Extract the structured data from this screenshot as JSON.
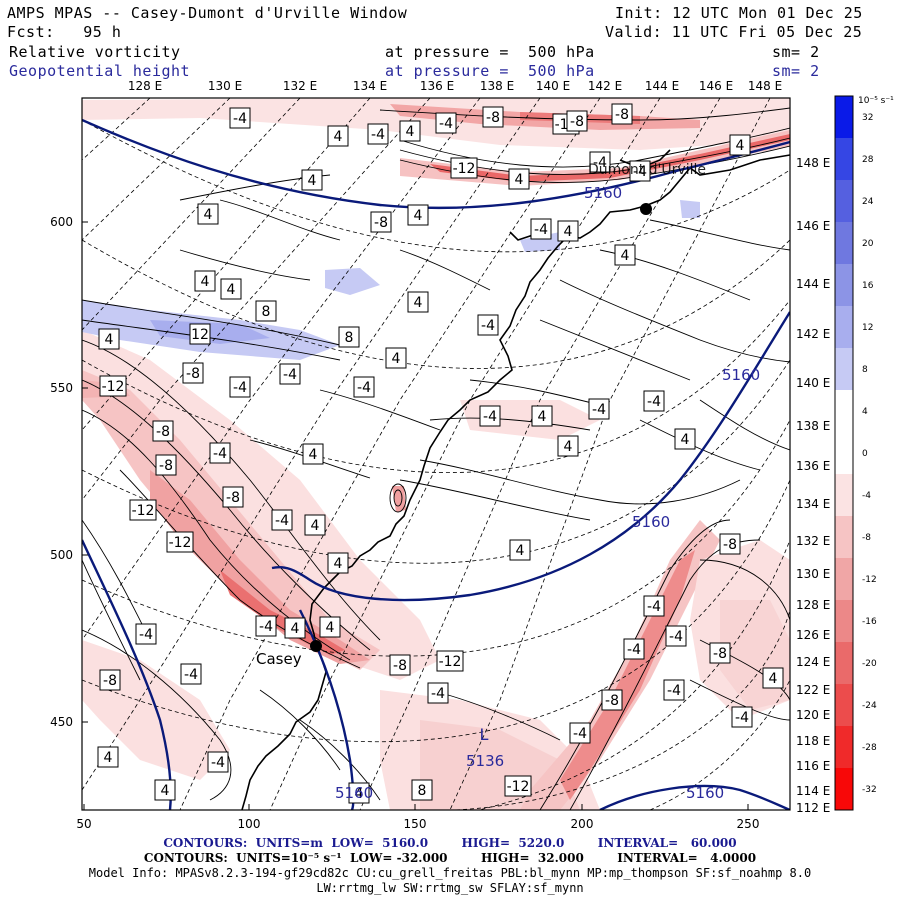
{
  "header": {
    "title": "AMPS MPAS -- Casey-Dumont d'Urville Window",
    "init": "Init: 12 UTC Mon 01 Dec 25",
    "fcst": "Fcst:   95 h",
    "valid": "Valid: 11 UTC Fri 05 Dec 25",
    "field1": "Relative vorticity",
    "field1_level": "at pressure =  500 hPa",
    "field1_sm": "sm= 2",
    "field2": "Geopotential height",
    "field2_level": "at pressure =  500 hPa",
    "field2_sm": "sm= 2"
  },
  "top_lon_labels": [
    "128 E",
    "130 E",
    "132 E",
    "134 E",
    "136 E",
    "138 E",
    "140 E",
    "142 E",
    "144 E",
    "146 E",
    "148 E"
  ],
  "right_lon_labels": [
    "148 E",
    "146 E",
    "144 E",
    "142 E",
    "140 E",
    "138 E",
    "136 E",
    "134 E",
    "132 E",
    "130 E",
    "128 E",
    "126 E",
    "124 E",
    "122 E",
    "120 E",
    "118 E",
    "116 E",
    "114 E",
    "112 E"
  ],
  "x_ticks": [
    "50",
    "100",
    "150",
    "200",
    "250"
  ],
  "y_ticks": [
    "600",
    "550",
    "500",
    "450"
  ],
  "colorbar": {
    "units": "10⁻⁵ s⁻¹",
    "labels": [
      "32",
      "28",
      "24",
      "20",
      "16",
      "12",
      "8",
      "4",
      "0",
      "-4",
      "-8",
      "-12",
      "-16",
      "-20",
      "-24",
      "-28",
      "-32"
    ],
    "colors": [
      "#0a1ae8",
      "#3546e4",
      "#5560e0",
      "#6f78e0",
      "#8c94e6",
      "#a8aeee",
      "#c6caf4",
      "#ffffff",
      "#ffffff",
      "#fbe3e3",
      "#f6c4c4",
      "#f0a6a6",
      "#ec8888",
      "#ea6a6a",
      "#ec4c4c",
      "#f02a2a",
      "#f80808"
    ]
  },
  "stations": [
    {
      "name": "Casey"
    },
    {
      "name": "Dumont d'Urville"
    }
  ],
  "height_labels": [
    "5160",
    "5160",
    "5160",
    "5160",
    "5160",
    "5136"
  ],
  "low_marker": "L",
  "vorticity_labels": [
    "-4",
    "4",
    "-4",
    "4",
    "-4",
    "-8",
    "-12",
    "-8",
    "-12",
    "4",
    "4",
    "4",
    "4",
    "-8",
    "4",
    "4",
    "8",
    "12",
    "8",
    "4",
    "4",
    "-4",
    "-4",
    "-4",
    "4",
    "-12",
    "-8",
    "-4",
    "-8",
    "-4",
    "-8",
    "-12",
    "-4",
    "4",
    "4",
    "-8",
    "-12",
    "4",
    "4",
    "-4",
    "4",
    "4",
    "-4",
    "-4",
    "4",
    "4",
    "4",
    "-4",
    "-4",
    "-4",
    "-8",
    "-4",
    "-4",
    "-4",
    "-8",
    "-4",
    "-8",
    "-4",
    "-8",
    "-12",
    "-4",
    "4",
    "4",
    "-4",
    "-4",
    "-8",
    "4",
    "4",
    "-4",
    "8",
    "-12",
    "4",
    "4",
    "-4",
    "-4",
    "4",
    "-8"
  ],
  "footer": {
    "line1": "CONTOURS:  UNITS=m  LOW=  5160.0        HIGH=  5220.0        INTERVAL=   60.000",
    "line2": "CONTOURS:  UNITS=10⁻⁵ s⁻¹  LOW= -32.000        HIGH=  32.000        INTERVAL=   4.0000",
    "line3": "Model Info: MPASv8.2.3-194-gf29cd82c CU:cu_grell_freitas PBL:bl_mynn MP:mp_thompson SF:sf_noahmp 8.0",
    "line4": "LW:rrtmg_lw SW:rrtmg_sw SFLAY:sf_mynn"
  }
}
